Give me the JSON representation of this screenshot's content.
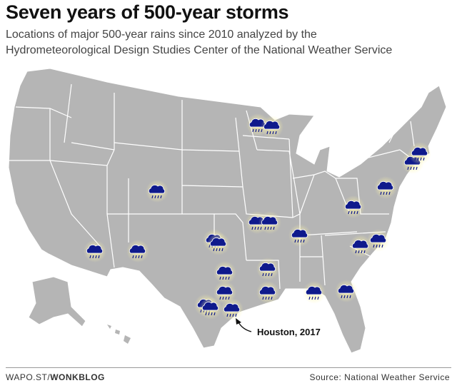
{
  "header": {
    "title": "Seven years of 500-year storms",
    "subtitle": [
      "Locations of major 500-year rains since 2010 analyzed by the",
      "Hydrometeorological Design Studies Center of the National Weather Service"
    ]
  },
  "map": {
    "annotation": "Houston, 2017"
  },
  "footer": {
    "credit": [
      "WAPO.ST/",
      "WONKBLOG"
    ],
    "source": "Source: National Weather Service"
  }
}
